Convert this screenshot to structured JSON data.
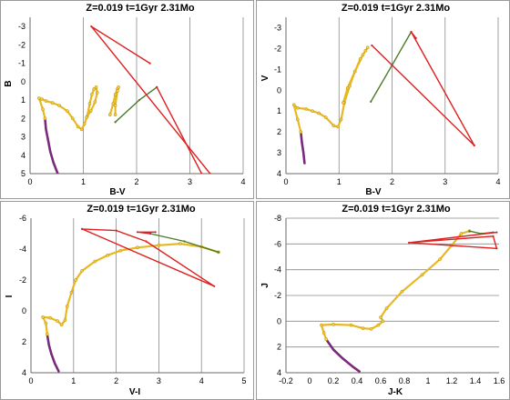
{
  "chart_data": [
    {
      "type": "line",
      "title": "Z=0.019   t=1Gyr   2.31Mo",
      "xlabel": "B-V",
      "ylabel": "B",
      "xlim": [
        0,
        4
      ],
      "ylim": [
        5,
        -3.5
      ],
      "y_inverted": true,
      "x_ticks": [
        "0",
        "1",
        "2",
        "3",
        "4"
      ],
      "y_ticks": [
        "-3",
        "-2",
        "-1",
        "0",
        "1",
        "2",
        "3",
        "4",
        "5"
      ],
      "grid": "vertical",
      "series": [
        {
          "color": "#7a2a7a",
          "values": [
            [
              0.28,
              2.0
            ],
            [
              0.3,
              2.6
            ],
            [
              0.34,
              3.2
            ],
            [
              0.38,
              3.8
            ],
            [
              0.44,
              4.4
            ],
            [
              0.52,
              5.0
            ]
          ]
        },
        {
          "color": "#e8b820",
          "values": [
            [
              0.28,
              2.0
            ],
            [
              0.24,
              1.5
            ],
            [
              0.17,
              0.9
            ],
            [
              0.22,
              0.95
            ],
            [
              0.3,
              1.05
            ],
            [
              0.42,
              1.15
            ],
            [
              0.55,
              1.3
            ],
            [
              0.7,
              1.6
            ],
            [
              0.8,
              2.0
            ],
            [
              0.9,
              2.45
            ],
            [
              0.97,
              2.6
            ],
            [
              1.02,
              2.3
            ],
            [
              1.07,
              1.9
            ],
            [
              1.12,
              1.2
            ],
            [
              1.16,
              0.7
            ],
            [
              1.2,
              0.4
            ],
            [
              1.24,
              0.3
            ],
            [
              1.26,
              0.6
            ],
            [
              1.22,
              1.1
            ],
            [
              1.14,
              1.6
            ],
            [
              1.06,
              1.95
            ]
          ]
        },
        {
          "color": "#e8b820",
          "values": [
            [
              1.5,
              1.8
            ],
            [
              1.56,
              1.2
            ],
            [
              1.6,
              0.7
            ],
            [
              1.64,
              0.4
            ],
            [
              1.66,
              0.3
            ],
            [
              1.64,
              0.5
            ],
            [
              1.6,
              1.3
            ],
            [
              1.6,
              1.8
            ]
          ]
        },
        {
          "color": "#4a7a2a",
          "values": [
            [
              1.6,
              2.2
            ],
            [
              2.05,
              1.0
            ],
            [
              2.38,
              0.3
            ]
          ]
        },
        {
          "color": "#dd2020",
          "values": [
            [
              2.38,
              0.3
            ],
            [
              3.22,
              5.0
            ]
          ]
        },
        {
          "color": "#dd2020",
          "values": [
            [
              2.25,
              -1.0
            ],
            [
              1.15,
              -3.0
            ],
            [
              3.38,
              5.0
            ]
          ]
        }
      ]
    },
    {
      "type": "line",
      "title": "Z=0.019   t=1Gyr   2.31Mo",
      "xlabel": "B-V",
      "ylabel": "V",
      "xlim": [
        0,
        4
      ],
      "ylim": [
        4,
        -3.5
      ],
      "y_inverted": true,
      "x_ticks": [
        "0",
        "1",
        "2",
        "3",
        "4"
      ],
      "y_ticks": [
        "-3",
        "-2",
        "-1",
        "0",
        "1",
        "2",
        "3",
        "4"
      ],
      "grid": "vertical",
      "series": [
        {
          "color": "#7a2a7a",
          "values": [
            [
              0.28,
              2.0
            ],
            [
              0.3,
              2.5
            ],
            [
              0.33,
              3.0
            ],
            [
              0.35,
              3.5
            ]
          ]
        },
        {
          "color": "#e8b820",
          "values": [
            [
              0.28,
              2.0
            ],
            [
              0.22,
              1.4
            ],
            [
              0.15,
              0.7
            ],
            [
              0.22,
              0.85
            ],
            [
              0.38,
              0.9
            ],
            [
              0.5,
              1.0
            ],
            [
              0.62,
              1.1
            ],
            [
              0.75,
              1.3
            ],
            [
              0.9,
              1.7
            ],
            [
              0.98,
              1.75
            ],
            [
              1.04,
              1.4
            ],
            [
              1.1,
              0.6
            ],
            [
              1.2,
              -0.2
            ],
            [
              1.3,
              -0.9
            ],
            [
              1.4,
              -1.5
            ],
            [
              1.5,
              -1.9
            ],
            [
              1.54,
              -2.05
            ],
            [
              1.45,
              -1.7
            ],
            [
              1.3,
              -0.9
            ],
            [
              1.16,
              -0.1
            ],
            [
              1.08,
              0.6
            ]
          ]
        },
        {
          "color": "#4a7a2a",
          "values": [
            [
              1.6,
              0.55
            ],
            [
              2.0,
              -1.2
            ],
            [
              2.36,
              -2.8
            ]
          ]
        },
        {
          "color": "#dd2020",
          "values": [
            [
              2.36,
              -2.8
            ],
            [
              3.55,
              2.65
            ]
          ]
        },
        {
          "color": "#dd2020",
          "values": [
            [
              3.55,
              2.65
            ],
            [
              1.62,
              -2.15
            ]
          ]
        },
        {
          "color": "#dd2020",
          "values": [
            [
              2.36,
              -2.8
            ],
            [
              2.45,
              -2.5
            ]
          ]
        }
      ]
    },
    {
      "type": "line",
      "title": "Z=0.019   t=1Gyr   2.31Mo",
      "xlabel": "V-I",
      "ylabel": "I",
      "xlim": [
        0,
        5
      ],
      "ylim": [
        4,
        -6
      ],
      "y_inverted": true,
      "x_ticks": [
        "0",
        "1",
        "2",
        "3",
        "4",
        "5"
      ],
      "y_ticks": [
        "-6",
        "-4",
        "-2",
        "0",
        "2",
        "4"
      ],
      "grid": "vertical",
      "series": [
        {
          "color": "#7a2a7a",
          "values": [
            [
              0.38,
              1.5
            ],
            [
              0.42,
              2.2
            ],
            [
              0.48,
              2.8
            ],
            [
              0.56,
              3.4
            ],
            [
              0.65,
              3.9
            ]
          ]
        },
        {
          "color": "#e8b820",
          "values": [
            [
              0.38,
              1.5
            ],
            [
              0.35,
              0.8
            ],
            [
              0.28,
              0.4
            ],
            [
              0.45,
              0.45
            ],
            [
              0.62,
              0.65
            ],
            [
              0.72,
              0.9
            ],
            [
              0.8,
              0.6
            ],
            [
              0.85,
              -0.3
            ],
            [
              0.95,
              -1.2
            ],
            [
              1.05,
              -2.0
            ],
            [
              1.2,
              -2.6
            ],
            [
              1.5,
              -3.2
            ],
            [
              1.8,
              -3.6
            ],
            [
              2.1,
              -3.9
            ],
            [
              2.5,
              -4.1
            ]
          ]
        },
        {
          "color": "#e8b820",
          "values": [
            [
              2.5,
              -4.1
            ],
            [
              3.0,
              -4.25
            ],
            [
              3.5,
              -4.35
            ],
            [
              4.0,
              -4.15
            ],
            [
              4.4,
              -3.8
            ]
          ]
        },
        {
          "color": "#4a7a2a",
          "values": [
            [
              2.8,
              -5.0
            ],
            [
              3.6,
              -4.5
            ],
            [
              4.4,
              -3.8
            ]
          ]
        },
        {
          "color": "#dd2020",
          "values": [
            [
              2.8,
              -5.0
            ],
            [
              2.5,
              -5.1
            ],
            [
              2.92,
              -5.1
            ]
          ]
        },
        {
          "color": "#dd2020",
          "values": [
            [
              1.2,
              -5.3
            ],
            [
              4.3,
              -1.6
            ],
            [
              2.7,
              -4.5
            ],
            [
              2.0,
              -5.2
            ],
            [
              1.2,
              -5.3
            ]
          ]
        }
      ]
    },
    {
      "type": "line",
      "title": "Z=0.019   t=1Gyr   2.31Mo",
      "xlabel": "J-K",
      "ylabel": "J",
      "xlim": [
        -0.2,
        1.6
      ],
      "ylim": [
        4,
        -8
      ],
      "y_inverted": true,
      "x_ticks": [
        "-0.2",
        "0",
        "0.2",
        "0.4",
        "0.6",
        "0.8",
        "1",
        "1.2",
        "1.4",
        "1.6"
      ],
      "y_ticks": [
        "-8",
        "-6",
        "-4",
        "-2",
        "0",
        "2",
        "4"
      ],
      "grid": "horizontal",
      "series": [
        {
          "color": "#7a2a7a",
          "values": [
            [
              0.14,
              1.4
            ],
            [
              0.2,
              2.2
            ],
            [
              0.28,
              2.9
            ],
            [
              0.36,
              3.5
            ],
            [
              0.42,
              3.9
            ]
          ]
        },
        {
          "color": "#e8b820",
          "values": [
            [
              0.14,
              1.4
            ],
            [
              0.12,
              0.9
            ],
            [
              0.1,
              0.3
            ],
            [
              0.2,
              0.25
            ],
            [
              0.35,
              0.3
            ],
            [
              0.45,
              0.55
            ],
            [
              0.52,
              0.6
            ],
            [
              0.58,
              0.3
            ],
            [
              0.62,
              0.0
            ],
            [
              0.6,
              -0.3
            ],
            [
              0.65,
              -1.0
            ],
            [
              0.78,
              -2.3
            ],
            [
              0.95,
              -3.6
            ],
            [
              1.1,
              -4.8
            ],
            [
              1.2,
              -5.9
            ],
            [
              1.28,
              -6.8
            ],
            [
              1.35,
              -7.0
            ]
          ]
        },
        {
          "color": "#4a7a2a",
          "values": [
            [
              1.35,
              -7.0
            ],
            [
              1.45,
              -6.8
            ],
            [
              1.55,
              -6.9
            ]
          ]
        },
        {
          "color": "#dd2020",
          "values": [
            [
              1.58,
              -6.9
            ],
            [
              0.84,
              -6.1
            ],
            [
              1.55,
              -6.6
            ],
            [
              1.58,
              -5.65
            ],
            [
              0.84,
              -6.1
            ]
          ]
        }
      ]
    }
  ]
}
